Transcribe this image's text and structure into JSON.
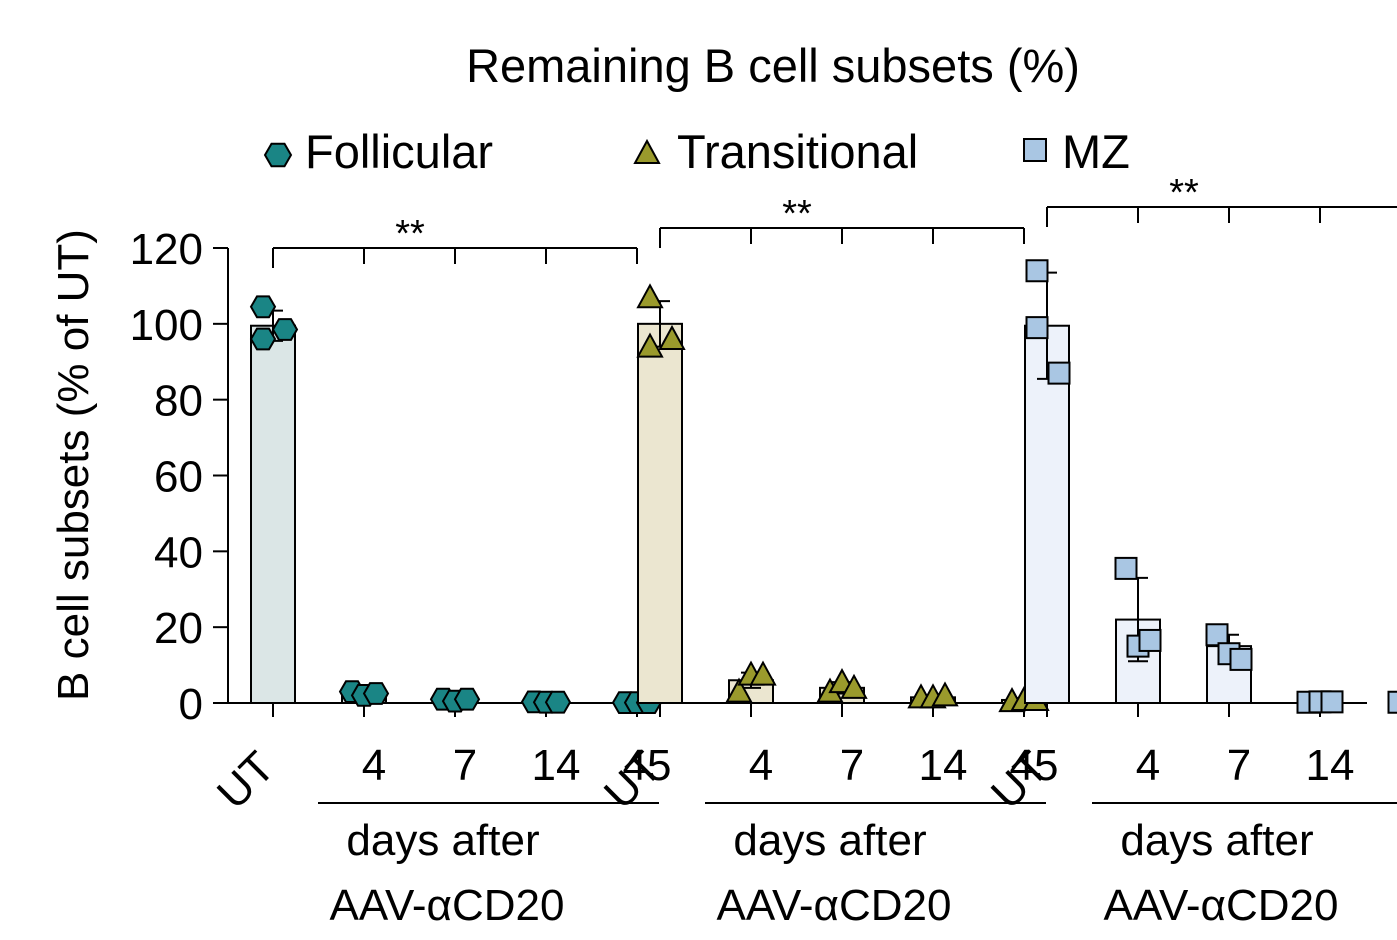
{
  "chart_data": {
    "type": "bar",
    "title": "Remaining B cell subsets (%)",
    "ylabel": "B cell subsets (% of UT)",
    "ylim": [
      0,
      120
    ],
    "yticks": [
      "0",
      "20",
      "40",
      "60",
      "80",
      "100",
      "120"
    ],
    "categories": [
      "UT",
      "4",
      "7",
      "14",
      "45"
    ],
    "group_xlabel_line1": "days after",
    "group_xlabel_line2": "AAV-αCD20",
    "significance_label": "**",
    "legend_position": "top",
    "colors": {
      "Follicular": {
        "marker": "#1a8585",
        "bar": "#dbe6e6"
      },
      "Transitional": {
        "marker": "#9a9a2c",
        "bar": "#ebe6d0"
      },
      "MZ": {
        "marker": "#a9c6e3",
        "bar": "#edf2fa"
      }
    },
    "series": [
      {
        "name": "Follicular",
        "marker": "hexagon",
        "means": [
          99.5,
          2.5,
          0.8,
          0.2,
          0.1
        ],
        "sd": [
          4,
          1,
          0.5,
          0.2,
          0.1
        ],
        "points": [
          [
            104.5,
            96,
            98.5
          ],
          [
            3,
            2,
            2.5
          ],
          [
            1,
            0.5,
            1
          ],
          [
            0.3,
            0.2,
            0.2
          ],
          [
            0.1,
            0.1,
            0.1
          ]
        ]
      },
      {
        "name": "Transitional",
        "marker": "triangle",
        "means": [
          100,
          6,
          4,
          1.5,
          0.8
        ],
        "sd": [
          6,
          2,
          1.5,
          0.5,
          0.5
        ],
        "points": [
          [
            107,
            94,
            96
          ],
          [
            3,
            7.5,
            7.5
          ],
          [
            3,
            5.5,
            4
          ],
          [
            1.5,
            1.5,
            2
          ],
          [
            0.5,
            0.8,
            0.8
          ]
        ]
      },
      {
        "name": "MZ",
        "marker": "square",
        "means": [
          99.5,
          22,
          15,
          0.3,
          0.3
        ],
        "sd": [
          14,
          11,
          3,
          0.2,
          0.2
        ],
        "points": [
          [
            114,
            99,
            87
          ],
          [
            35.5,
            15,
            16.5
          ],
          [
            18,
            13,
            11.5
          ],
          [
            0.2,
            0.3,
            0.3
          ],
          [
            0.2,
            0.3,
            0.3
          ]
        ]
      }
    ]
  }
}
